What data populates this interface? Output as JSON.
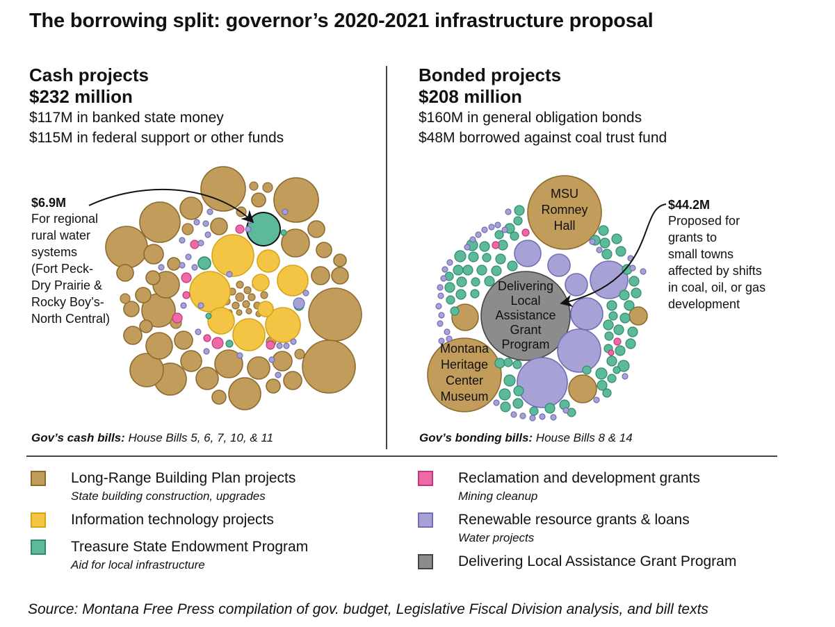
{
  "title": "The borrowing split: governor’s 2020-2021 infrastructure proposal",
  "left": {
    "heading": "Cash projects",
    "total": "$232 million",
    "line1": "$117M in banked state money",
    "line2": "$115M in federal support or other funds",
    "bills_label": "Gov’s cash bills:",
    "bills_text": " House Bills 5, 6, 7, 10, & 11",
    "annotation_amount": "$6.9M",
    "annotation_lines": [
      "For regional",
      "rural water",
      "systems",
      "(Fort Peck-",
      "Dry Prairie &",
      "Rocky Boy’s-",
      "North Central)"
    ]
  },
  "right": {
    "heading": "Bonded projects",
    "total": "$208 million",
    "line1": "$160M in general obligation bonds",
    "line2": "$48M borrowed against coal trust fund",
    "bills_label": "Gov’s bonding bills:",
    "bills_text": " House Bills 8 & 14",
    "annotation_amount": "$44.2M",
    "annotation_lines": [
      "Proposed for",
      "grants to",
      "small towns",
      "affected by shifts",
      "in coal, oil, or gas",
      "development"
    ]
  },
  "legend": [
    {
      "key": "lrbp",
      "label": "Long-Range Building Plan projects",
      "desc": "State building construction, upgrades"
    },
    {
      "key": "it",
      "label": "Information technology projects",
      "desc": ""
    },
    {
      "key": "tsep",
      "label": "Treasure State Endowment Program",
      "desc": "Aid for local infrastructure"
    },
    {
      "key": "rdg",
      "label": "Reclamation and development grants",
      "desc": "Mining cleanup"
    },
    {
      "key": "rrgl",
      "label": "Renewable resource grants & loans",
      "desc": "Water projects"
    },
    {
      "key": "dla",
      "label": "Delivering Local Assistance Grant Program",
      "desc": ""
    }
  ],
  "source": "Source: Montana Free Press compilation of gov. budget, Legislative Fiscal Division analysis, and bill texts",
  "colors": {
    "lrbp": {
      "fill": "#c29c5b",
      "stroke": "#8c6a2e"
    },
    "it": {
      "fill": "#f4c544",
      "stroke": "#d6a417"
    },
    "tsep": {
      "fill": "#5cb99a",
      "stroke": "#2f8a6a"
    },
    "rdg": {
      "fill": "#ee6aa7",
      "stroke": "#c1377b"
    },
    "rrgl": {
      "fill": "#a7a2d6",
      "stroke": "#726db4"
    },
    "dla": {
      "fill": "#8c8c8c",
      "stroke": "#444444"
    }
  },
  "chart_data": [
    {
      "type": "bubble",
      "title": "Cash projects",
      "total_million": 232,
      "groups": [
        {
          "category": "Long-Range Building Plan projects",
          "key": "lrbp"
        },
        {
          "category": "Information technology projects",
          "key": "it"
        },
        {
          "category": "Treasure State Endowment Program",
          "key": "tsep"
        },
        {
          "category": "Reclamation and development grants",
          "key": "rdg"
        },
        {
          "category": "Renewable resource grants & loans",
          "key": "rrgl"
        }
      ],
      "highlight": {
        "label": "Regional rural water systems",
        "value_million": 6.9,
        "key": "tsep"
      }
    },
    {
      "type": "bubble",
      "title": "Bonded projects",
      "total_million": 208,
      "groups": [
        {
          "category": "Long-Range Building Plan projects",
          "key": "lrbp"
        },
        {
          "category": "Treasure State Endowment Program",
          "key": "tsep"
        },
        {
          "category": "Reclamation and development grants",
          "key": "rdg"
        },
        {
          "category": "Renewable resource grants & loans",
          "key": "rrgl"
        },
        {
          "category": "Delivering Local Assistance Grant Program",
          "key": "dla"
        }
      ],
      "labeled_bubbles": [
        {
          "label": "MSU Romney Hall",
          "key": "lrbp"
        },
        {
          "label": "Montana Heritage Center Museum",
          "key": "lrbp"
        },
        {
          "label": "Delivering Local Assistance Grant Program",
          "key": "dla",
          "value_million": 44.2
        }
      ]
    }
  ],
  "bubble_labels": {
    "romney": [
      "MSU",
      "Romney",
      "Hall"
    ],
    "heritage": [
      "Montana",
      "Heritage",
      "Center",
      "Museum"
    ],
    "dla": [
      "Delivering",
      "Local",
      "Assistance",
      "Grant",
      "Program"
    ]
  }
}
